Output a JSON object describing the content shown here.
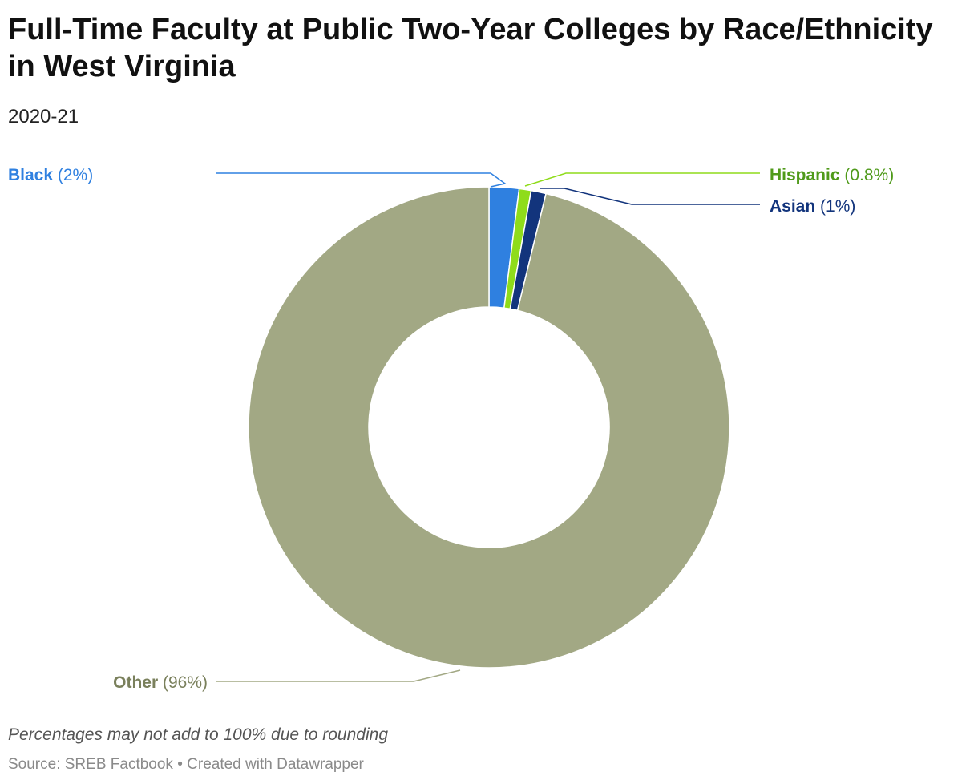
{
  "chart_data": {
    "type": "pie",
    "style": "donut",
    "title": "Full-Time Faculty at Public Two-Year Colleges by Race/Ethnicity in West Virginia",
    "subtitle": "2020-21",
    "slices": [
      {
        "label": "Black",
        "value": 2,
        "value_label": "(2%)",
        "color": "#2f80e0",
        "label_color": "#2f80e0"
      },
      {
        "label": "Hispanic",
        "value": 0.8,
        "value_label": "(0.8%)",
        "color": "#8fdc1a",
        "label_color": "#4f9a1a"
      },
      {
        "label": "Asian",
        "value": 1,
        "value_label": "(1%)",
        "color": "#12347c",
        "label_color": "#12347c"
      },
      {
        "label": "Other",
        "value": 96,
        "value_label": "(96%)",
        "color": "#a2a884",
        "label_color": "#7a805c"
      }
    ]
  },
  "note": "Percentages may not add to 100% due to rounding",
  "footer": {
    "source_text": "Source: SREB Factbook",
    "separator": "•",
    "credit_text": "Created with Datawrapper"
  }
}
